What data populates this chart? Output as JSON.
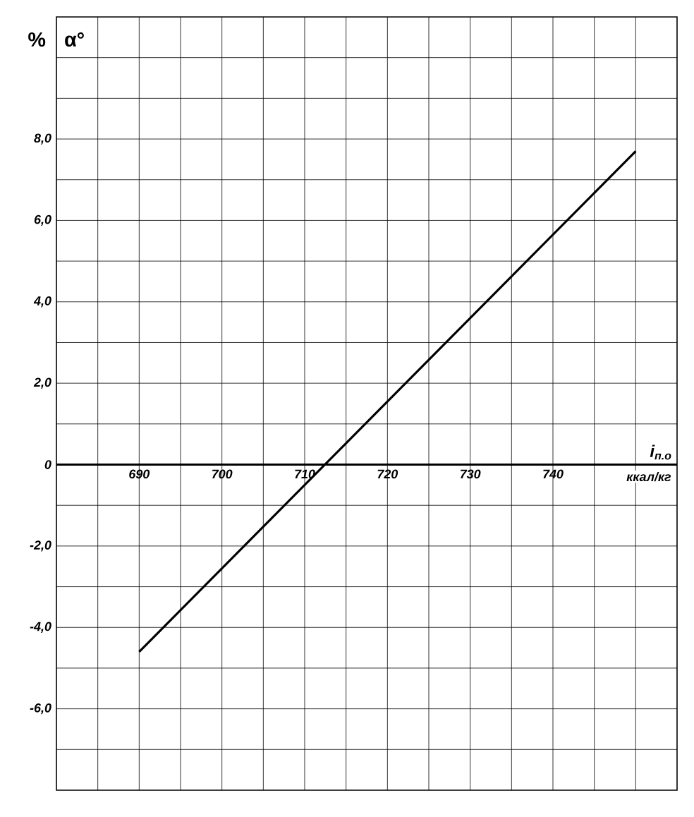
{
  "chart_data": {
    "type": "line",
    "xlabel": "i$_{п.о}$",
    "ylabel": "%",
    "annotations": [
      "α°",
      "ккал/кг"
    ],
    "x": [
      690,
      750
    ],
    "values": [
      -4.6,
      7.7
    ],
    "color": "#000000",
    "xlim": [
      680,
      755
    ],
    "ylim": [
      -8,
      11
    ],
    "xticks": [
      {
        "value": 685,
        "label": null
      },
      {
        "value": 690,
        "label": "690"
      },
      {
        "value": 695,
        "label": null
      },
      {
        "value": 700,
        "label": "700"
      },
      {
        "value": 705,
        "label": null
      },
      {
        "value": 710,
        "label": "710"
      },
      {
        "value": 715,
        "label": null
      },
      {
        "value": 720,
        "label": "720"
      },
      {
        "value": 725,
        "label": null
      },
      {
        "value": 730,
        "label": "730"
      },
      {
        "value": 735,
        "label": null
      },
      {
        "value": 740,
        "label": "740"
      },
      {
        "value": 745,
        "label": null
      },
      {
        "value": 750,
        "label": null
      }
    ],
    "yticks": [
      {
        "value": -7,
        "label": null
      },
      {
        "value": -6,
        "label": "-6,0"
      },
      {
        "value": -5,
        "label": null
      },
      {
        "value": -4,
        "label": "-4,0"
      },
      {
        "value": -3,
        "label": null
      },
      {
        "value": -2,
        "label": "-2,0"
      },
      {
        "value": -1,
        "label": null
      },
      0,
      {
        "value": 1,
        "label": null
      },
      {
        "value": 2,
        "label": "2,0"
      },
      {
        "value": 3,
        "label": null
      },
      {
        "value": 4,
        "label": "4,0"
      },
      {
        "value": 5,
        "label": null
      },
      {
        "value": 6,
        "label": "6,0"
      },
      {
        "value": 7,
        "label": null
      },
      {
        "value": 8,
        "label": "8,0"
      },
      {
        "value": 9,
        "label": null
      },
      {
        "value": 10,
        "label": null
      }
    ],
    "grid": true
  }
}
